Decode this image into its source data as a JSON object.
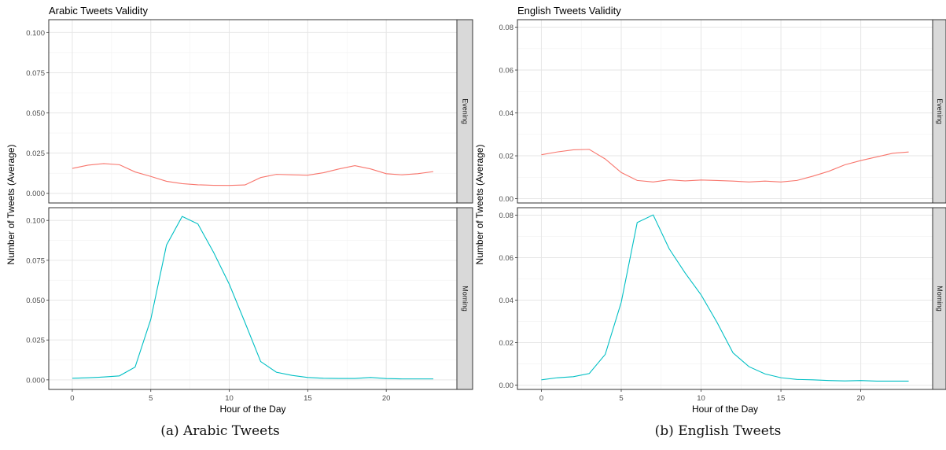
{
  "chart_data": [
    {
      "type": "line",
      "title": "Arabic Tweets Validity",
      "xlabel": "Hour of the Day",
      "ylabel": "Number of Tweets (Average)",
      "xlim": [
        -1.5,
        24.5
      ],
      "ylim": [
        -0.006,
        0.108
      ],
      "xticks": [
        0,
        5,
        10,
        15,
        20
      ],
      "yticks": [
        0,
        0.025,
        0.05,
        0.075,
        0.1
      ],
      "ytick_labels": [
        "0.000",
        "0.025",
        "0.050",
        "0.075",
        "0.100"
      ],
      "grid": true,
      "facets": [
        {
          "label": "Evening",
          "color": "#F8766D",
          "x": [
            0,
            1,
            2,
            3,
            4,
            5,
            6,
            7,
            8,
            9,
            10,
            11,
            12,
            13,
            14,
            15,
            16,
            17,
            18,
            19,
            20,
            21,
            22,
            23
          ],
          "y": [
            0.0155,
            0.0175,
            0.0185,
            0.0178,
            0.0133,
            0.0105,
            0.0075,
            0.006,
            0.0053,
            0.005,
            0.0049,
            0.0052,
            0.0098,
            0.0118,
            0.0115,
            0.0113,
            0.0128,
            0.0152,
            0.0172,
            0.0152,
            0.0122,
            0.0115,
            0.0122,
            0.0135
          ]
        },
        {
          "label": "Morning",
          "color": "#00BFC4",
          "x": [
            0,
            1,
            2,
            3,
            4,
            5,
            6,
            7,
            8,
            9,
            10,
            11,
            12,
            13,
            14,
            15,
            16,
            17,
            18,
            19,
            20,
            21,
            22,
            23
          ],
          "y": [
            0.001,
            0.0013,
            0.0018,
            0.0025,
            0.008,
            0.038,
            0.0845,
            0.1025,
            0.0978,
            0.08,
            0.06,
            0.036,
            0.0115,
            0.0048,
            0.0028,
            0.0015,
            0.001,
            0.0009,
            0.0009,
            0.0015,
            0.0008,
            0.0006,
            0.0006,
            0.0006
          ]
        }
      ]
    },
    {
      "type": "line",
      "title": "English Tweets Validity",
      "xlabel": "Hour of the Day",
      "ylabel": "Number of Tweets (Average)",
      "xlim": [
        -1.5,
        24.5
      ],
      "ylim": [
        -0.002,
        0.0835
      ],
      "xticks": [
        0,
        5,
        10,
        15,
        20
      ],
      "yticks": [
        0,
        0.02,
        0.04,
        0.06,
        0.08
      ],
      "ytick_labels": [
        "0.00",
        "0.02",
        "0.04",
        "0.06",
        "0.08"
      ],
      "grid": true,
      "facets": [
        {
          "label": "Evening",
          "color": "#F8766D",
          "x": [
            0,
            1,
            2,
            3,
            4,
            5,
            6,
            7,
            8,
            9,
            10,
            11,
            12,
            13,
            14,
            15,
            16,
            17,
            18,
            19,
            20,
            21,
            22,
            23
          ],
          "y": [
            0.0205,
            0.0218,
            0.0228,
            0.023,
            0.0185,
            0.0122,
            0.0085,
            0.0078,
            0.0088,
            0.0083,
            0.0087,
            0.0085,
            0.0082,
            0.0078,
            0.0082,
            0.0078,
            0.0085,
            0.0105,
            0.0128,
            0.0158,
            0.0178,
            0.0195,
            0.0212,
            0.0218
          ]
        },
        {
          "label": "Morning",
          "color": "#00BFC4",
          "x": [
            0,
            1,
            2,
            3,
            4,
            5,
            6,
            7,
            8,
            9,
            10,
            11,
            12,
            13,
            14,
            15,
            16,
            17,
            18,
            19,
            20,
            21,
            22,
            23
          ],
          "y": [
            0.0025,
            0.0035,
            0.004,
            0.0055,
            0.0145,
            0.039,
            0.0765,
            0.0801,
            0.0642,
            0.0528,
            0.0425,
            0.0295,
            0.0152,
            0.0087,
            0.0053,
            0.0035,
            0.0027,
            0.0025,
            0.0022,
            0.002,
            0.0022,
            0.0019,
            0.0019,
            0.0019
          ]
        }
      ]
    }
  ],
  "captions": [
    "(a) Arabic Tweets",
    "(b) English Tweets"
  ]
}
